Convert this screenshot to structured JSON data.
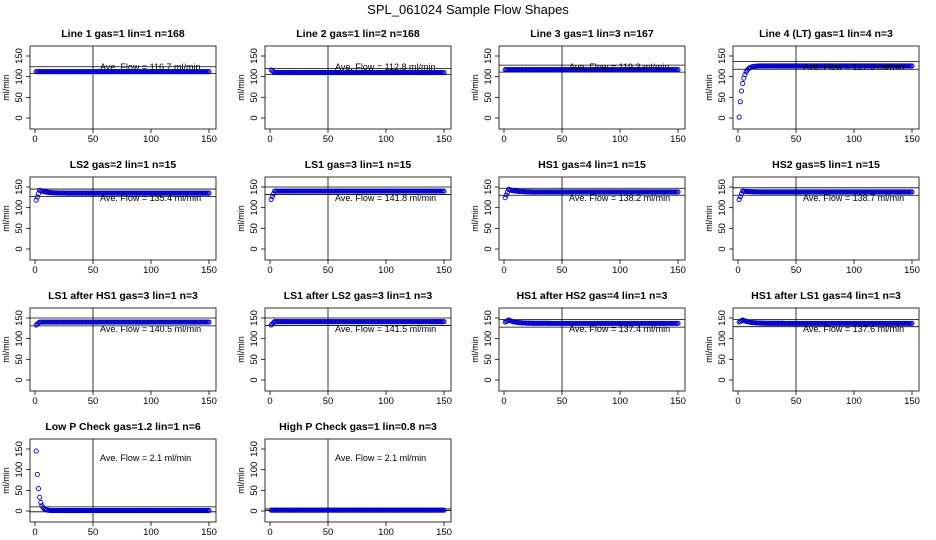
{
  "figure": {
    "title": "SPL_061024  Sample Flow Shapes",
    "point_color": "#0000cc"
  },
  "chart_data": [
    {
      "type": "scatter",
      "title": "Line 1 gas=1 lin=1 n=168",
      "ylabel": "ml/min",
      "annotation": "Ave. Flow =  116.7  ml/min",
      "ave_flow": 116.7,
      "hlines": [
        108,
        124
      ],
      "vline": 50,
      "xlim": [
        0,
        150
      ],
      "ylim": [
        0,
        150
      ],
      "xticks": [
        0,
        50,
        100,
        150
      ],
      "yticks": [
        0,
        50,
        100,
        150
      ],
      "shape": {
        "kind": "flat",
        "level": 112,
        "n": 150
      }
    },
    {
      "type": "scatter",
      "title": "Line 2 gas=1 lin=2 n=168",
      "ylabel": "ml/min",
      "annotation": "Ave. Flow =  112.8  ml/min",
      "ave_flow": 112.8,
      "hlines": [
        105,
        120
      ],
      "vline": 50,
      "xlim": [
        0,
        150
      ],
      "ylim": [
        0,
        150
      ],
      "xticks": [
        0,
        50,
        100,
        150
      ],
      "yticks": [
        0,
        50,
        100,
        150
      ],
      "shape": {
        "kind": "flat",
        "level": 110,
        "start": 116,
        "n": 150
      }
    },
    {
      "type": "scatter",
      "title": "Line 3 gas=1 lin=3 n=167",
      "ylabel": "ml/min",
      "annotation": "Ave. Flow =  119.3  ml/min",
      "ave_flow": 119.3,
      "hlines": [
        111,
        128
      ],
      "vline": 50,
      "xlim": [
        0,
        150
      ],
      "ylim": [
        0,
        150
      ],
      "xticks": [
        0,
        50,
        100,
        150
      ],
      "yticks": [
        0,
        50,
        100,
        150
      ],
      "shape": {
        "kind": "flat",
        "level": 117,
        "n": 150
      }
    },
    {
      "type": "scatter",
      "title": "Line 4 (LT) gas=1 lin=4 n=3",
      "ylabel": "ml/min",
      "annotation": "Ave. Flow =  127.3  ml/min",
      "ave_flow": 127.3,
      "hlines": [
        118,
        137
      ],
      "vline": 50,
      "xlim": [
        0,
        150
      ],
      "ylim": [
        0,
        150
      ],
      "xticks": [
        0,
        50,
        100,
        150
      ],
      "yticks": [
        0,
        50,
        100,
        150
      ],
      "shape": {
        "kind": "rise",
        "level": 126,
        "start": 2,
        "tau": 2.8,
        "n": 150
      }
    },
    {
      "type": "scatter",
      "title": "LS2 gas=2 lin=1 n=15",
      "ylabel": "ml/min",
      "annotation": "Ave. Flow =  135.4  ml/min",
      "ave_flow": 135.4,
      "hlines": [
        127,
        145
      ],
      "vline": 50,
      "xlim": [
        0,
        150
      ],
      "ylim": [
        0,
        150
      ],
      "xticks": [
        0,
        50,
        100,
        150
      ],
      "yticks": [
        0,
        50,
        100,
        150
      ],
      "shape": {
        "kind": "dip",
        "level": 135,
        "start": 118,
        "peak": 142,
        "n": 150
      }
    },
    {
      "type": "scatter",
      "title": "LS1 gas=3 lin=1 n=15",
      "ylabel": "ml/min",
      "annotation": "Ave. Flow =  141.8  ml/min",
      "ave_flow": 141.8,
      "hlines": [
        132,
        150
      ],
      "vline": 50,
      "xlim": [
        0,
        150
      ],
      "ylim": [
        0,
        150
      ],
      "xticks": [
        0,
        50,
        100,
        150
      ],
      "yticks": [
        0,
        50,
        100,
        150
      ],
      "shape": {
        "kind": "dip",
        "level": 140,
        "start": 120,
        "peak": 140,
        "n": 150
      }
    },
    {
      "type": "scatter",
      "title": "HS1 gas=4 lin=1 n=15",
      "ylabel": "ml/min",
      "annotation": "Ave. Flow =  138.2  ml/min",
      "ave_flow": 138.2,
      "hlines": [
        130,
        147
      ],
      "vline": 50,
      "xlim": [
        0,
        150
      ],
      "ylim": [
        0,
        150
      ],
      "xticks": [
        0,
        50,
        100,
        150
      ],
      "yticks": [
        0,
        50,
        100,
        150
      ],
      "shape": {
        "kind": "dip",
        "level": 138,
        "start": 124,
        "peak": 144,
        "n": 150
      }
    },
    {
      "type": "scatter",
      "title": "HS2 gas=5 lin=1 n=15",
      "ylabel": "ml/min",
      "annotation": "Ave. Flow =  138.7  ml/min",
      "ave_flow": 138.7,
      "hlines": [
        130,
        148
      ],
      "vline": 50,
      "xlim": [
        0,
        150
      ],
      "ylim": [
        0,
        150
      ],
      "xticks": [
        0,
        50,
        100,
        150
      ],
      "yticks": [
        0,
        50,
        100,
        150
      ],
      "shape": {
        "kind": "dip",
        "level": 138,
        "start": 120,
        "peak": 140,
        "n": 150
      }
    },
    {
      "type": "scatter",
      "title": "LS1 after HS1 gas=3 lin=1 n=3",
      "ylabel": "ml/min",
      "annotation": "Ave. Flow =  140.5  ml/min",
      "ave_flow": 140.5,
      "hlines": [
        131,
        150
      ],
      "vline": 50,
      "xlim": [
        0,
        150
      ],
      "ylim": [
        0,
        150
      ],
      "xticks": [
        0,
        50,
        100,
        150
      ],
      "yticks": [
        0,
        50,
        100,
        150
      ],
      "shape": {
        "kind": "dip",
        "level": 140,
        "start": 133,
        "peak": 140,
        "n": 150
      }
    },
    {
      "type": "scatter",
      "title": "LS1 after LS2 gas=3 lin=1 n=3",
      "ylabel": "ml/min",
      "annotation": "Ave. Flow =  141.5  ml/min",
      "ave_flow": 141.5,
      "hlines": [
        132,
        150
      ],
      "vline": 50,
      "xlim": [
        0,
        150
      ],
      "ylim": [
        0,
        150
      ],
      "xticks": [
        0,
        50,
        100,
        150
      ],
      "yticks": [
        0,
        50,
        100,
        150
      ],
      "shape": {
        "kind": "dip",
        "level": 141,
        "start": 133,
        "peak": 141,
        "n": 150
      }
    },
    {
      "type": "scatter",
      "title": "HS1 after HS2 gas=4 lin=1 n=3",
      "ylabel": "ml/min",
      "annotation": "Ave. Flow =  137.4  ml/min",
      "ave_flow": 137.4,
      "hlines": [
        128,
        146
      ],
      "vline": 50,
      "xlim": [
        0,
        150
      ],
      "ylim": [
        0,
        150
      ],
      "xticks": [
        0,
        50,
        100,
        150
      ],
      "yticks": [
        0,
        50,
        100,
        150
      ],
      "shape": {
        "kind": "dip",
        "level": 137,
        "start": 140,
        "peak": 145,
        "n": 150
      }
    },
    {
      "type": "scatter",
      "title": "HS1 after LS1 gas=4 lin=1 n=3",
      "ylabel": "ml/min",
      "annotation": "Ave. Flow =  137.6  ml/min",
      "ave_flow": 137.6,
      "hlines": [
        129,
        146
      ],
      "vline": 50,
      "xlim": [
        0,
        150
      ],
      "ylim": [
        0,
        150
      ],
      "xticks": [
        0,
        50,
        100,
        150
      ],
      "yticks": [
        0,
        50,
        100,
        150
      ],
      "shape": {
        "kind": "dip",
        "level": 137,
        "start": 140,
        "peak": 145,
        "n": 150
      }
    },
    {
      "type": "scatter",
      "title": "Low P Check gas=1.2 lin=1 n=6",
      "ylabel": "ml/min",
      "annotation": "Ave. Flow =  2.1  ml/min",
      "ave_flow": 2.1,
      "hlines": [
        -2,
        10
      ],
      "vline": 50,
      "xlim": [
        0,
        150
      ],
      "ylim": [
        0,
        150
      ],
      "xticks": [
        0,
        50,
        100,
        150
      ],
      "yticks": [
        0,
        50,
        100,
        150
      ],
      "shape": {
        "kind": "decay",
        "level": 1,
        "start": 145,
        "tau": 2.0,
        "n": 150
      }
    },
    {
      "type": "scatter",
      "title": "High P Check gas=1 lin=0.8 n=3",
      "ylabel": "ml/min",
      "annotation": "Ave. Flow =  2.1  ml/min",
      "ave_flow": 2.1,
      "hlines": [
        1,
        5
      ],
      "vline": 50,
      "xlim": [
        0,
        150
      ],
      "ylim": [
        0,
        150
      ],
      "xticks": [
        0,
        50,
        100,
        150
      ],
      "yticks": [
        0,
        50,
        100,
        150
      ],
      "shape": {
        "kind": "flat",
        "level": 2,
        "n": 150
      }
    }
  ]
}
